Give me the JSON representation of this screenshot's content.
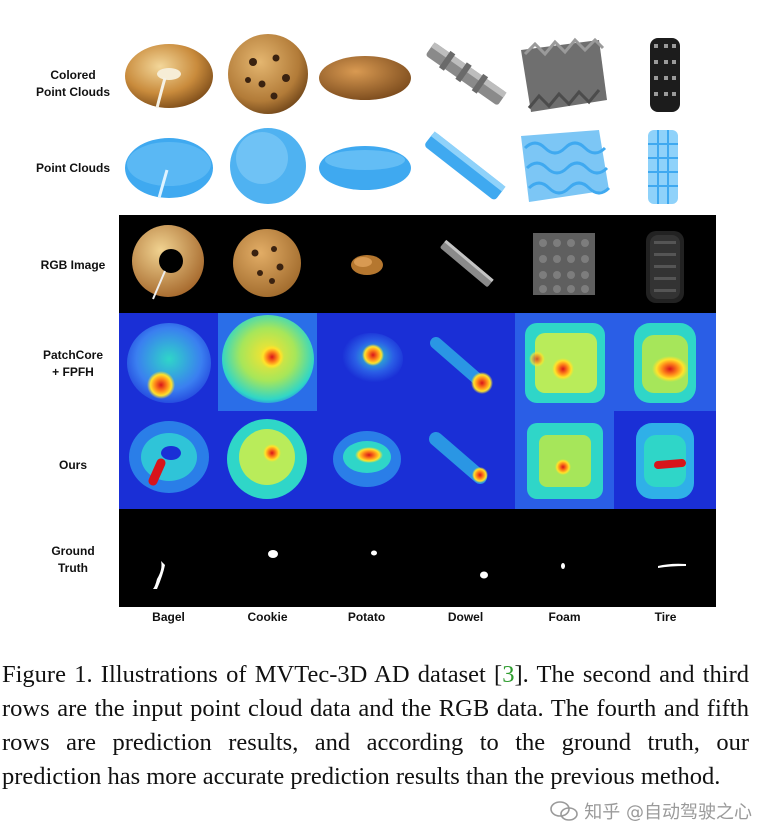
{
  "figure": {
    "row_labels": [
      "Colored\nPoint Clouds",
      "Point Clouds",
      "RGB Image",
      "PatchCore\n+ FPFH",
      "Ours",
      "Ground\nTruth"
    ],
    "columns": [
      "Bagel",
      "Cookie",
      "Potato",
      "Dowel",
      "Foam",
      "Tire"
    ]
  },
  "caption": {
    "prefix": "Figure 1. Illustrations of MVTec-3D AD dataset [",
    "cite": "3",
    "suffix": "]. The second and third rows are the input point cloud data and the RGB data. The fourth and fifth rows are prediction results, and according to the ground truth, our prediction has more accurate prediction results than the previous method."
  },
  "watermark": {
    "text": "知乎 @自动驾驶之心"
  },
  "colors": {
    "heat_low": "#1a2fd6",
    "heat_mid": "#2fd6c8",
    "heat_high": "#ffe22a",
    "heat_peak": "#d8141a",
    "point_cloud_blue": "#3fa9f0",
    "citation": "#2e9c2e"
  }
}
